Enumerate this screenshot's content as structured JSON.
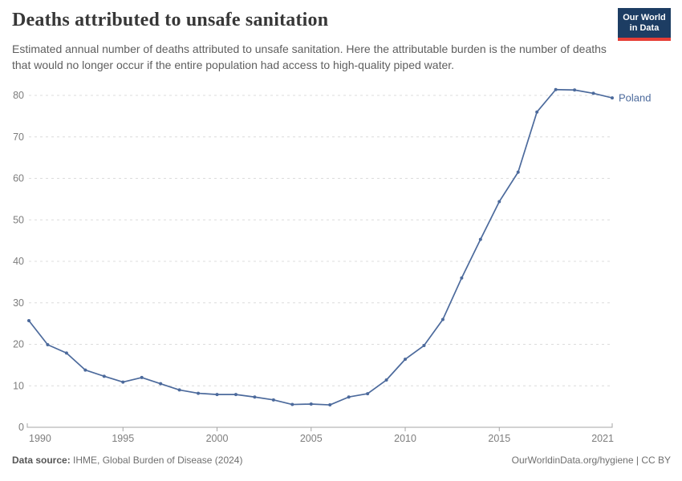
{
  "header": {
    "title": "Deaths attributed to unsafe sanitation",
    "subtitle": "Estimated annual number of deaths attributed to unsafe sanitation. Here the attributable burden is the number of deaths that would no longer occur if the entire population had access to high-quality piped water.",
    "logo": {
      "line1": "Our World",
      "line2": "in Data"
    }
  },
  "chart_data": {
    "type": "line",
    "title": "Deaths attributed to unsafe sanitation",
    "xlabel": "",
    "ylabel": "",
    "ylim": [
      0,
      80
    ],
    "yticks": [
      0,
      10,
      20,
      30,
      40,
      50,
      60,
      70,
      80
    ],
    "xticks": [
      1990,
      1995,
      2000,
      2005,
      2010,
      2015,
      2021
    ],
    "grid": "horizontal-dashed",
    "legend_position": "end-of-line-label",
    "x": [
      1990,
      1991,
      1992,
      1993,
      1994,
      1995,
      1996,
      1997,
      1998,
      1999,
      2000,
      2001,
      2002,
      2003,
      2004,
      2005,
      2006,
      2007,
      2008,
      2009,
      2010,
      2011,
      2012,
      2013,
      2014,
      2015,
      2016,
      2017,
      2018,
      2019,
      2020,
      2021
    ],
    "series": [
      {
        "name": "Poland",
        "color": "#4c6a9c",
        "values": [
          25.7,
          19.9,
          17.9,
          13.8,
          12.3,
          10.9,
          12.0,
          10.5,
          9.0,
          8.2,
          7.9,
          7.9,
          7.3,
          6.6,
          5.5,
          5.6,
          5.4,
          7.3,
          8.1,
          11.4,
          16.4,
          19.7,
          26.0,
          36.0,
          45.3,
          54.4,
          61.5,
          76.0,
          81.4,
          81.3,
          80.5,
          79.4
        ]
      }
    ]
  },
  "footer": {
    "source_label": "Data source:",
    "source_text": " IHME, Global Burden of Disease (2024)",
    "credit": "OurWorldinData.org/hygiene | CC BY"
  },
  "colors": {
    "line": "#4c6a9c",
    "logo_bg": "#1d3d63",
    "logo_stripe": "#e63e36",
    "grid": "#dcdcdc",
    "axis": "#a5a5a5",
    "tick_text": "#7d7d7d"
  }
}
